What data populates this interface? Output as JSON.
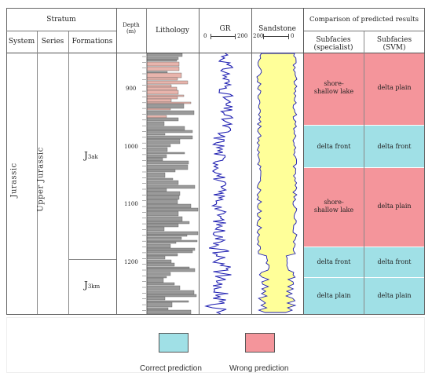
{
  "header": {
    "stratum": "Stratum",
    "system": "System",
    "series": "Series",
    "formations": "Formations",
    "depth": "Depth",
    "depth_unit": "(m)",
    "lithology": "Lithology",
    "gr": "GR",
    "gr_min": "0",
    "gr_max": "200",
    "sandstone": "Sandstone",
    "sand_left": "200",
    "sand_right": "0",
    "comparison": "Comparison of predicted results",
    "subfacies_specialist": "Subfacies",
    "subfacies_specialist_sub": "(specialist)",
    "subfacies_svm": "Subfacies",
    "subfacies_svm_sub": "(SVM)"
  },
  "strat": {
    "system": "Jurassic",
    "series": "Upper Jurassic",
    "formation_upper_main": "J",
    "formation_upper_sub": "3ak",
    "formation_lower_main": "J",
    "formation_lower_sub": "3km"
  },
  "depth_ticks": [
    "900",
    "1000",
    "1100",
    "1200"
  ],
  "facies_rows": [
    {
      "specialist": "shore-shallow lake",
      "svm": "delta plain",
      "match": false
    },
    {
      "specialist": "delta front",
      "svm": "delta front",
      "match": true
    },
    {
      "specialist": "shore-shallow lake",
      "svm": "delta plain",
      "match": false
    },
    {
      "specialist": "delta front",
      "svm": "delta front",
      "match": true
    },
    {
      "specialist": "delta plain",
      "svm": "delta plain",
      "match": true
    }
  ],
  "legend": {
    "correct_label": "Correct prediction",
    "wrong_label": "Wrong prediction"
  },
  "colors": {
    "correct": "#a0e0e6",
    "wrong": "#f4959b",
    "sand_fill": "#ffff99",
    "curve": "#1b1bb0",
    "litho_gray": "#9a9a9a",
    "litho_pink": "#e8b4ac"
  }
}
